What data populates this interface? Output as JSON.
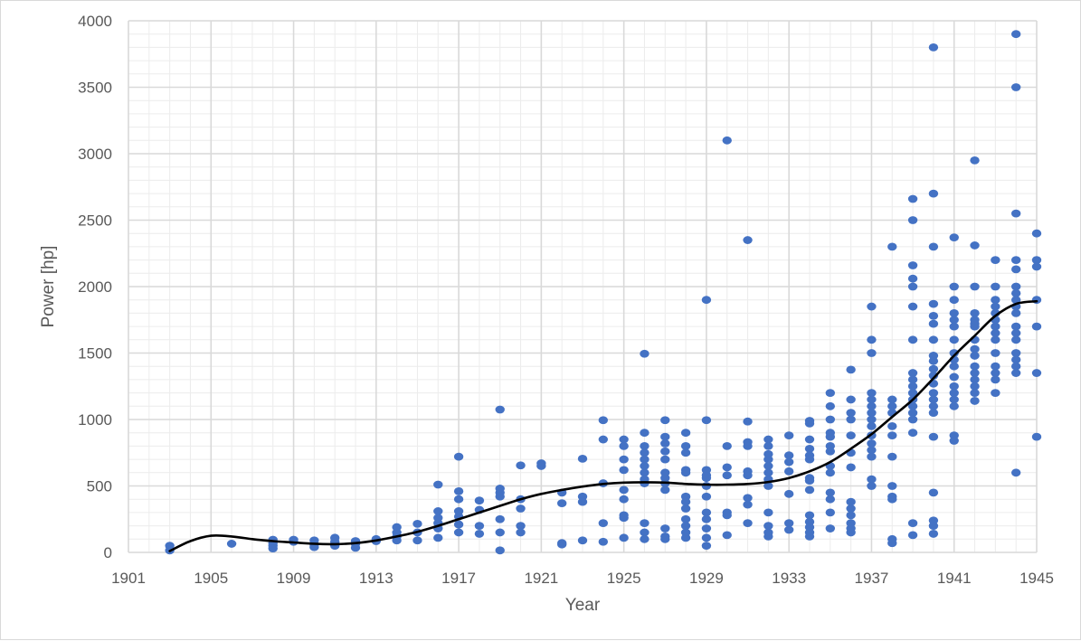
{
  "chart_data": {
    "type": "scatter",
    "title": "",
    "xlabel": "Year",
    "ylabel": "Power [hp]",
    "xlim": [
      1901,
      1945
    ],
    "ylim": [
      0,
      4000
    ],
    "x_ticks": [
      1901,
      1905,
      1909,
      1913,
      1917,
      1921,
      1925,
      1929,
      1933,
      1937,
      1941,
      1945
    ],
    "y_ticks": [
      0,
      500,
      1000,
      1500,
      2000,
      2500,
      3000,
      3500,
      4000
    ],
    "grid": true,
    "legend": "none",
    "colors": {
      "points": "#4472c4",
      "trend": "#000000",
      "grid": "#d9d9d9",
      "text": "#595959"
    },
    "points": [
      [
        1903,
        50
      ],
      [
        1903,
        15
      ],
      [
        1906,
        65
      ],
      [
        1908,
        95
      ],
      [
        1908,
        70
      ],
      [
        1908,
        50
      ],
      [
        1908,
        30
      ],
      [
        1909,
        95
      ],
      [
        1909,
        80
      ],
      [
        1910,
        90
      ],
      [
        1910,
        60
      ],
      [
        1910,
        40
      ],
      [
        1911,
        110
      ],
      [
        1911,
        80
      ],
      [
        1911,
        50
      ],
      [
        1912,
        85
      ],
      [
        1912,
        65
      ],
      [
        1912,
        35
      ],
      [
        1913,
        100
      ],
      [
        1913,
        85
      ],
      [
        1914,
        190
      ],
      [
        1914,
        150
      ],
      [
        1914,
        120
      ],
      [
        1914,
        90
      ],
      [
        1915,
        215
      ],
      [
        1915,
        150
      ],
      [
        1915,
        90
      ],
      [
        1916,
        510
      ],
      [
        1916,
        310
      ],
      [
        1916,
        260
      ],
      [
        1916,
        220
      ],
      [
        1916,
        180
      ],
      [
        1916,
        110
      ],
      [
        1917,
        720
      ],
      [
        1917,
        460
      ],
      [
        1917,
        400
      ],
      [
        1917,
        310
      ],
      [
        1917,
        270
      ],
      [
        1917,
        210
      ],
      [
        1917,
        150
      ],
      [
        1918,
        390
      ],
      [
        1918,
        320
      ],
      [
        1918,
        200
      ],
      [
        1918,
        140
      ],
      [
        1919,
        1075
      ],
      [
        1919,
        480
      ],
      [
        1919,
        450
      ],
      [
        1919,
        420
      ],
      [
        1919,
        250
      ],
      [
        1919,
        150
      ],
      [
        1919,
        15
      ],
      [
        1920,
        655
      ],
      [
        1920,
        400
      ],
      [
        1920,
        330
      ],
      [
        1920,
        200
      ],
      [
        1920,
        150
      ],
      [
        1921,
        670
      ],
      [
        1921,
        650
      ],
      [
        1922,
        450
      ],
      [
        1922,
        370
      ],
      [
        1922,
        70
      ],
      [
        1922,
        60
      ],
      [
        1923,
        705
      ],
      [
        1923,
        420
      ],
      [
        1923,
        380
      ],
      [
        1923,
        90
      ],
      [
        1924,
        995
      ],
      [
        1924,
        850
      ],
      [
        1924,
        520
      ],
      [
        1924,
        220
      ],
      [
        1924,
        80
      ],
      [
        1925,
        850
      ],
      [
        1925,
        800
      ],
      [
        1925,
        700
      ],
      [
        1925,
        620
      ],
      [
        1925,
        470
      ],
      [
        1925,
        400
      ],
      [
        1925,
        280
      ],
      [
        1925,
        260
      ],
      [
        1925,
        110
      ],
      [
        1926,
        1495
      ],
      [
        1926,
        900
      ],
      [
        1926,
        800
      ],
      [
        1926,
        750
      ],
      [
        1926,
        700
      ],
      [
        1926,
        650
      ],
      [
        1926,
        600
      ],
      [
        1926,
        550
      ],
      [
        1926,
        520
      ],
      [
        1926,
        220
      ],
      [
        1926,
        150
      ],
      [
        1926,
        100
      ],
      [
        1927,
        995
      ],
      [
        1927,
        870
      ],
      [
        1927,
        820
      ],
      [
        1927,
        760
      ],
      [
        1927,
        700
      ],
      [
        1927,
        600
      ],
      [
        1927,
        560
      ],
      [
        1927,
        520
      ],
      [
        1927,
        470
      ],
      [
        1927,
        180
      ],
      [
        1927,
        120
      ],
      [
        1927,
        100
      ],
      [
        1928,
        900
      ],
      [
        1928,
        800
      ],
      [
        1928,
        750
      ],
      [
        1928,
        620
      ],
      [
        1928,
        600
      ],
      [
        1928,
        420
      ],
      [
        1928,
        380
      ],
      [
        1928,
        330
      ],
      [
        1928,
        250
      ],
      [
        1928,
        200
      ],
      [
        1928,
        150
      ],
      [
        1928,
        110
      ],
      [
        1929,
        1900
      ],
      [
        1929,
        995
      ],
      [
        1929,
        620
      ],
      [
        1929,
        580
      ],
      [
        1929,
        560
      ],
      [
        1929,
        500
      ],
      [
        1929,
        420
      ],
      [
        1929,
        300
      ],
      [
        1929,
        250
      ],
      [
        1929,
        180
      ],
      [
        1929,
        110
      ],
      [
        1929,
        50
      ],
      [
        1930,
        3100
      ],
      [
        1930,
        800
      ],
      [
        1930,
        640
      ],
      [
        1930,
        580
      ],
      [
        1930,
        300
      ],
      [
        1930,
        280
      ],
      [
        1930,
        130
      ],
      [
        1931,
        2350
      ],
      [
        1931,
        985
      ],
      [
        1931,
        830
      ],
      [
        1931,
        800
      ],
      [
        1931,
        610
      ],
      [
        1931,
        580
      ],
      [
        1931,
        410
      ],
      [
        1931,
        360
      ],
      [
        1931,
        220
      ],
      [
        1932,
        850
      ],
      [
        1932,
        800
      ],
      [
        1932,
        740
      ],
      [
        1932,
        700
      ],
      [
        1932,
        650
      ],
      [
        1932,
        600
      ],
      [
        1932,
        550
      ],
      [
        1932,
        500
      ],
      [
        1932,
        300
      ],
      [
        1932,
        200
      ],
      [
        1932,
        150
      ],
      [
        1932,
        120
      ],
      [
        1933,
        880
      ],
      [
        1933,
        730
      ],
      [
        1933,
        680
      ],
      [
        1933,
        610
      ],
      [
        1933,
        440
      ],
      [
        1933,
        220
      ],
      [
        1933,
        170
      ],
      [
        1934,
        990
      ],
      [
        1934,
        970
      ],
      [
        1934,
        850
      ],
      [
        1934,
        780
      ],
      [
        1934,
        730
      ],
      [
        1934,
        700
      ],
      [
        1934,
        560
      ],
      [
        1934,
        540
      ],
      [
        1934,
        470
      ],
      [
        1934,
        280
      ],
      [
        1934,
        230
      ],
      [
        1934,
        190
      ],
      [
        1934,
        150
      ],
      [
        1934,
        120
      ],
      [
        1935,
        1200
      ],
      [
        1935,
        1100
      ],
      [
        1935,
        1000
      ],
      [
        1935,
        900
      ],
      [
        1935,
        870
      ],
      [
        1935,
        800
      ],
      [
        1935,
        760
      ],
      [
        1935,
        650
      ],
      [
        1935,
        600
      ],
      [
        1935,
        450
      ],
      [
        1935,
        400
      ],
      [
        1935,
        300
      ],
      [
        1935,
        180
      ],
      [
        1936,
        1375
      ],
      [
        1936,
        1150
      ],
      [
        1936,
        1050
      ],
      [
        1936,
        1000
      ],
      [
        1936,
        880
      ],
      [
        1936,
        750
      ],
      [
        1936,
        640
      ],
      [
        1936,
        380
      ],
      [
        1936,
        330
      ],
      [
        1936,
        280
      ],
      [
        1936,
        220
      ],
      [
        1936,
        180
      ],
      [
        1936,
        150
      ],
      [
        1937,
        1850
      ],
      [
        1937,
        1600
      ],
      [
        1937,
        1500
      ],
      [
        1937,
        1200
      ],
      [
        1937,
        1150
      ],
      [
        1937,
        1100
      ],
      [
        1937,
        1050
      ],
      [
        1937,
        1000
      ],
      [
        1937,
        950
      ],
      [
        1937,
        880
      ],
      [
        1937,
        820
      ],
      [
        1937,
        770
      ],
      [
        1937,
        720
      ],
      [
        1937,
        550
      ],
      [
        1937,
        500
      ],
      [
        1938,
        2300
      ],
      [
        1938,
        1150
      ],
      [
        1938,
        1100
      ],
      [
        1938,
        1050
      ],
      [
        1938,
        950
      ],
      [
        1938,
        880
      ],
      [
        1938,
        720
      ],
      [
        1938,
        500
      ],
      [
        1938,
        420
      ],
      [
        1938,
        400
      ],
      [
        1938,
        100
      ],
      [
        1938,
        70
      ],
      [
        1939,
        2660
      ],
      [
        1939,
        2500
      ],
      [
        1939,
        2160
      ],
      [
        1939,
        2060
      ],
      [
        1939,
        2000
      ],
      [
        1939,
        1850
      ],
      [
        1939,
        1600
      ],
      [
        1939,
        1350
      ],
      [
        1939,
        1300
      ],
      [
        1939,
        1250
      ],
      [
        1939,
        1200
      ],
      [
        1939,
        1150
      ],
      [
        1939,
        1100
      ],
      [
        1939,
        1050
      ],
      [
        1939,
        1000
      ],
      [
        1939,
        900
      ],
      [
        1939,
        220
      ],
      [
        1939,
        130
      ],
      [
        1940,
        3800
      ],
      [
        1940,
        2700
      ],
      [
        1940,
        2300
      ],
      [
        1940,
        1870
      ],
      [
        1940,
        1780
      ],
      [
        1940,
        1720
      ],
      [
        1940,
        1600
      ],
      [
        1940,
        1480
      ],
      [
        1940,
        1440
      ],
      [
        1940,
        1380
      ],
      [
        1940,
        1330
      ],
      [
        1940,
        1270
      ],
      [
        1940,
        1200
      ],
      [
        1940,
        1150
      ],
      [
        1940,
        1100
      ],
      [
        1940,
        1050
      ],
      [
        1940,
        870
      ],
      [
        1940,
        450
      ],
      [
        1940,
        240
      ],
      [
        1940,
        200
      ],
      [
        1940,
        140
      ],
      [
        1941,
        2370
      ],
      [
        1941,
        2000
      ],
      [
        1941,
        1900
      ],
      [
        1941,
        1800
      ],
      [
        1941,
        1750
      ],
      [
        1941,
        1700
      ],
      [
        1941,
        1600
      ],
      [
        1941,
        1500
      ],
      [
        1941,
        1450
      ],
      [
        1941,
        1400
      ],
      [
        1941,
        1320
      ],
      [
        1941,
        1250
      ],
      [
        1941,
        1200
      ],
      [
        1941,
        1150
      ],
      [
        1941,
        1100
      ],
      [
        1941,
        880
      ],
      [
        1941,
        840
      ],
      [
        1942,
        2950
      ],
      [
        1942,
        2310
      ],
      [
        1942,
        2000
      ],
      [
        1942,
        1800
      ],
      [
        1942,
        1750
      ],
      [
        1942,
        1720
      ],
      [
        1942,
        1700
      ],
      [
        1942,
        1600
      ],
      [
        1942,
        1530
      ],
      [
        1942,
        1480
      ],
      [
        1942,
        1400
      ],
      [
        1942,
        1350
      ],
      [
        1942,
        1300
      ],
      [
        1942,
        1250
      ],
      [
        1942,
        1200
      ],
      [
        1942,
        1140
      ],
      [
        1943,
        2200
      ],
      [
        1943,
        2000
      ],
      [
        1943,
        1900
      ],
      [
        1943,
        1850
      ],
      [
        1943,
        1800
      ],
      [
        1943,
        1750
      ],
      [
        1943,
        1700
      ],
      [
        1943,
        1650
      ],
      [
        1943,
        1600
      ],
      [
        1943,
        1500
      ],
      [
        1943,
        1400
      ],
      [
        1943,
        1350
      ],
      [
        1943,
        1300
      ],
      [
        1943,
        1200
      ],
      [
        1944,
        3900
      ],
      [
        1944,
        3500
      ],
      [
        1944,
        2550
      ],
      [
        1944,
        2200
      ],
      [
        1944,
        2130
      ],
      [
        1944,
        2000
      ],
      [
        1944,
        1950
      ],
      [
        1944,
        1900
      ],
      [
        1944,
        1850
      ],
      [
        1944,
        1800
      ],
      [
        1944,
        1700
      ],
      [
        1944,
        1650
      ],
      [
        1944,
        1600
      ],
      [
        1944,
        1500
      ],
      [
        1944,
        1450
      ],
      [
        1944,
        1400
      ],
      [
        1944,
        1350
      ],
      [
        1944,
        600
      ],
      [
        1945,
        2400
      ],
      [
        1945,
        2200
      ],
      [
        1945,
        2150
      ],
      [
        1945,
        1900
      ],
      [
        1945,
        1700
      ],
      [
        1945,
        1350
      ],
      [
        1945,
        870
      ]
    ],
    "trendline": {
      "style": "smooth",
      "points": [
        [
          1903,
          10
        ],
        [
          1904,
          85
        ],
        [
          1905,
          125
        ],
        [
          1906,
          120
        ],
        [
          1907,
          100
        ],
        [
          1908,
          85
        ],
        [
          1909,
          75
        ],
        [
          1910,
          65
        ],
        [
          1911,
          62
        ],
        [
          1912,
          70
        ],
        [
          1913,
          90
        ],
        [
          1914,
          120
        ],
        [
          1915,
          155
        ],
        [
          1916,
          200
        ],
        [
          1917,
          250
        ],
        [
          1918,
          300
        ],
        [
          1919,
          350
        ],
        [
          1920,
          400
        ],
        [
          1921,
          440
        ],
        [
          1922,
          470
        ],
        [
          1923,
          495
        ],
        [
          1924,
          515
        ],
        [
          1925,
          525
        ],
        [
          1926,
          528
        ],
        [
          1927,
          525
        ],
        [
          1928,
          515
        ],
        [
          1929,
          510
        ],
        [
          1930,
          510
        ],
        [
          1931,
          515
        ],
        [
          1932,
          530
        ],
        [
          1933,
          560
        ],
        [
          1934,
          610
        ],
        [
          1935,
          680
        ],
        [
          1936,
          780
        ],
        [
          1937,
          890
        ],
        [
          1938,
          1020
        ],
        [
          1939,
          1150
        ],
        [
          1940,
          1310
        ],
        [
          1941,
          1480
        ],
        [
          1942,
          1630
        ],
        [
          1943,
          1780
        ],
        [
          1944,
          1870
        ],
        [
          1945,
          1890
        ]
      ]
    }
  }
}
